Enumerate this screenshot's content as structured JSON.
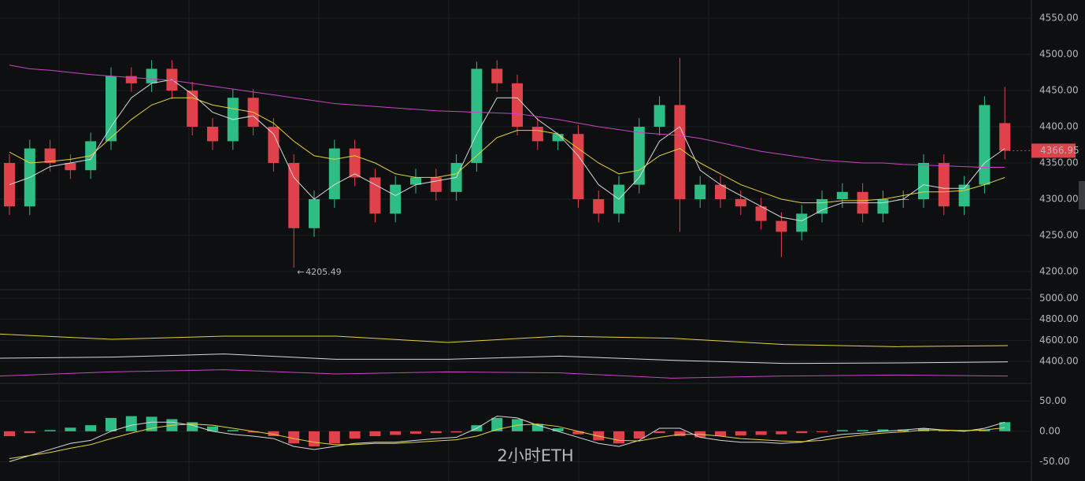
{
  "chart_data": [
    {
      "type": "candlestick",
      "up_color": "#2ebd85",
      "down_color": "#e0424c",
      "ylim": [
        4175,
        4575
      ],
      "yticks": [
        {
          "value": 4200,
          "label": "4200.00"
        },
        {
          "value": 4250,
          "label": "4250.00"
        },
        {
          "value": 4300,
          "label": "4300.00"
        },
        {
          "value": 4350,
          "label": "4350.00"
        },
        {
          "value": 4400,
          "label": "4400.00"
        },
        {
          "value": 4450,
          "label": "4450.00"
        },
        {
          "value": 4500,
          "label": "4500.00"
        },
        {
          "value": 4550,
          "label": "4550.00"
        }
      ],
      "grid": true,
      "open": [
        4350,
        4290,
        4370,
        4350,
        4340,
        4380,
        4470,
        4460,
        4480,
        4450,
        4400,
        4380,
        4440,
        4400,
        4350,
        4260,
        4300,
        4370,
        4330,
        4280,
        4320,
        4330,
        4310,
        4350,
        4480,
        4460,
        4400,
        4380,
        4390,
        4300,
        4280,
        4320,
        4400,
        4430,
        4300,
        4320,
        4300,
        4290,
        4270,
        4255,
        4280,
        4300,
        4310,
        4280,
        4300,
        4300,
        4350,
        4290,
        4320,
        4405
      ],
      "high": [
        4362,
        4382,
        4382,
        4362,
        4392,
        4482,
        4482,
        4492,
        4492,
        4462,
        4412,
        4452,
        4452,
        4412,
        4362,
        4312,
        4382,
        4382,
        4342,
        4332,
        4342,
        4342,
        4362,
        4490,
        4492,
        4472,
        4412,
        4392,
        4402,
        4312,
        4332,
        4412,
        4442,
        4495,
        4332,
        4332,
        4312,
        4302,
        4282,
        4292,
        4312,
        4322,
        4322,
        4312,
        4312,
        4362,
        4362,
        4332,
        4442,
        4455
      ],
      "low": [
        4278,
        4278,
        4338,
        4328,
        4328,
        4368,
        4448,
        4448,
        4438,
        4388,
        4368,
        4368,
        4388,
        4338,
        4205.49,
        4248,
        4288,
        4318,
        4268,
        4268,
        4308,
        4298,
        4298,
        4338,
        4448,
        4388,
        4368,
        4368,
        4288,
        4268,
        4268,
        4308,
        4388,
        4255,
        4288,
        4288,
        4278,
        4258,
        4220,
        4243,
        4268,
        4288,
        4268,
        4268,
        4288,
        4288,
        4278,
        4278,
        4308,
        4355
      ],
      "close": [
        4290,
        4370,
        4350,
        4340,
        4380,
        4470,
        4460,
        4480,
        4450,
        4400,
        4380,
        4440,
        4400,
        4350,
        4260,
        4300,
        4370,
        4330,
        4280,
        4320,
        4330,
        4310,
        4350,
        4480,
        4460,
        4400,
        4380,
        4390,
        4300,
        4280,
        4320,
        4400,
        4430,
        4300,
        4320,
        4300,
        4290,
        4270,
        4255,
        4280,
        4300,
        4310,
        4280,
        4300,
        4300,
        4350,
        4290,
        4320,
        4430,
        4366.95
      ],
      "series": [
        {
          "color": "#d9d9d9",
          "values": [
            4320,
            4330,
            4345,
            4350,
            4355,
            4400,
            4440,
            4460,
            4465,
            4445,
            4420,
            4410,
            4415,
            4390,
            4330,
            4300,
            4320,
            4335,
            4320,
            4305,
            4320,
            4325,
            4330,
            4390,
            4440,
            4440,
            4410,
            4390,
            4360,
            4320,
            4300,
            4330,
            4380,
            4400,
            4340,
            4320,
            4305,
            4290,
            4275,
            4270,
            4285,
            4295,
            4295,
            4295,
            4300,
            4320,
            4315,
            4315,
            4350,
            4370
          ]
        },
        {
          "color": "#e6d23a",
          "values": [
            4365,
            4350,
            4352,
            4355,
            4360,
            4385,
            4410,
            4430,
            4440,
            4440,
            4430,
            4425,
            4420,
            4405,
            4380,
            4360,
            4355,
            4360,
            4350,
            4335,
            4330,
            4330,
            4335,
            4360,
            4385,
            4395,
            4395,
            4390,
            4370,
            4350,
            4335,
            4340,
            4360,
            4370,
            4350,
            4335,
            4320,
            4310,
            4300,
            4295,
            4295,
            4298,
            4298,
            4300,
            4305,
            4310,
            4310,
            4312,
            4320,
            4330
          ]
        },
        {
          "color": "#c944c4",
          "values": [
            4485,
            4480,
            4478,
            4475,
            4472,
            4470,
            4468,
            4466,
            4464,
            4460,
            4456,
            4452,
            4448,
            4444,
            4440,
            4436,
            4432,
            4430,
            4428,
            4426,
            4424,
            4422,
            4421,
            4420,
            4419,
            4418,
            4414,
            4410,
            4405,
            4400,
            4396,
            4392,
            4390,
            4388,
            4384,
            4378,
            4372,
            4366,
            4362,
            4358,
            4354,
            4352,
            4350,
            4350,
            4348,
            4347,
            4346,
            4345,
            4344,
            4344
          ]
        }
      ],
      "annotation": "2小时ETH"
    },
    {
      "type": "line",
      "ylim": [
        4190,
        5082.5
      ],
      "yticks": [
        {
          "value": 4400,
          "label": "4400.00"
        },
        {
          "value": 4600,
          "label": "4600.00"
        },
        {
          "value": 4800,
          "label": "4800.00"
        },
        {
          "value": 5000,
          "label": "5000.00"
        }
      ],
      "grid": true,
      "series": [
        {
          "color": "#e6d23a",
          "values": [
            4660,
            4610,
            4640,
            4640,
            4580,
            4640,
            4620,
            4560,
            4540,
            4550
          ]
        },
        {
          "color": "#d9d9d9",
          "values": [
            4430,
            4440,
            4470,
            4420,
            4420,
            4450,
            4410,
            4380,
            4385,
            4395
          ]
        },
        {
          "color": "#c944c4",
          "values": [
            4260,
            4300,
            4320,
            4280,
            4300,
            4290,
            4240,
            4260,
            4270,
            4260
          ]
        }
      ]
    },
    {
      "type": "bar",
      "up_color": "#2ebd85",
      "down_color": "#e0424c",
      "ylim": [
        -82,
        79
      ],
      "yticks": [
        {
          "value": -50,
          "label": "-50.00"
        },
        {
          "value": 0,
          "label": "0.00"
        },
        {
          "value": 50,
          "label": "50.00"
        }
      ],
      "grid": true,
      "values": [
        -8,
        -3,
        2,
        6,
        10,
        22,
        25,
        24,
        20,
        15,
        8,
        2,
        -2,
        -8,
        -20,
        -25,
        -20,
        -12,
        -8,
        -6,
        -4,
        -3,
        -2,
        10,
        22,
        20,
        12,
        5,
        -5,
        -15,
        -20,
        -12,
        -3,
        -8,
        -10,
        -8,
        -7,
        -6,
        -5,
        -3,
        -1,
        2,
        2,
        3,
        3,
        5,
        2,
        2,
        3,
        15
      ],
      "series": [
        {
          "color": "#d9d9d9",
          "values": [
            -50,
            -40,
            -30,
            -20,
            -15,
            0,
            10,
            15,
            15,
            10,
            0,
            -5,
            -8,
            -12,
            -25,
            -30,
            -25,
            -20,
            -18,
            -18,
            -15,
            -12,
            -10,
            5,
            25,
            22,
            10,
            0,
            -10,
            -20,
            -25,
            -15,
            5,
            5,
            -10,
            -15,
            -18,
            -18,
            -20,
            -18,
            -10,
            -5,
            -3,
            0,
            2,
            5,
            2,
            0,
            5,
            15
          ]
        },
        {
          "color": "#e6d23a",
          "values": [
            -45,
            -40,
            -35,
            -28,
            -22,
            -12,
            -3,
            5,
            10,
            12,
            10,
            5,
            0,
            -5,
            -12,
            -18,
            -22,
            -22,
            -20,
            -20,
            -18,
            -16,
            -14,
            -8,
            3,
            10,
            12,
            8,
            0,
            -8,
            -15,
            -16,
            -10,
            -5,
            -5,
            -8,
            -12,
            -14,
            -16,
            -17,
            -15,
            -10,
            -6,
            -3,
            -1,
            2,
            2,
            1,
            2,
            6
          ]
        }
      ]
    }
  ]
}
